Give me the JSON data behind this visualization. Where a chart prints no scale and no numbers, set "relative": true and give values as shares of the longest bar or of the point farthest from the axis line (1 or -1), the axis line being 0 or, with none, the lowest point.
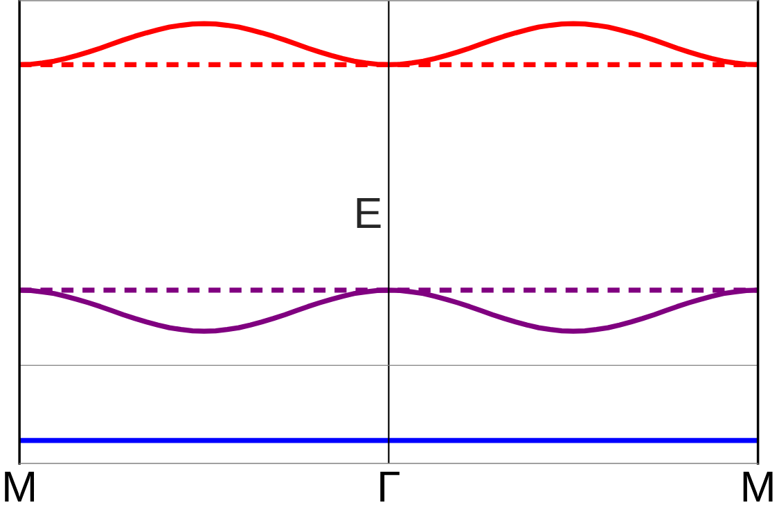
{
  "chart_data": {
    "type": "line",
    "relative": true,
    "ylabel": "E",
    "categories": [
      "M",
      null,
      null,
      null,
      null,
      null,
      null,
      null,
      null,
      null,
      null,
      null,
      null,
      null,
      null,
      null,
      null,
      null,
      null,
      null,
      null,
      null,
      null,
      null,
      null,
      null,
      null,
      null,
      null,
      null,
      null,
      null,
      "Γ",
      null,
      null,
      null,
      null,
      null,
      null,
      null,
      null,
      null,
      null,
      null,
      null,
      null,
      null,
      null,
      null,
      null,
      null,
      null,
      null,
      null,
      null,
      null,
      null,
      null,
      null,
      null,
      null,
      null,
      null,
      null,
      "M"
    ],
    "ref_lines": [
      {
        "axis": "x",
        "value": "Γ",
        "color": "#000000"
      }
    ],
    "series": [
      {
        "color": "#ff0000",
        "values": [
          0.88,
          0.881,
          0.885,
          0.89,
          0.898,
          0.907,
          0.917,
          0.928,
          0.94,
          0.952,
          0.963,
          0.973,
          0.982,
          0.99,
          0.995,
          0.999,
          1.0,
          0.999,
          0.995,
          0.99,
          0.982,
          0.973,
          0.963,
          0.952,
          0.94,
          0.928,
          0.917,
          0.907,
          0.898,
          0.89,
          0.885,
          0.881,
          0.88,
          0.881,
          0.885,
          0.89,
          0.898,
          0.907,
          0.917,
          0.928,
          0.94,
          0.952,
          0.963,
          0.973,
          0.982,
          0.99,
          0.995,
          0.999,
          1.0,
          0.999,
          0.995,
          0.99,
          0.982,
          0.973,
          0.963,
          0.952,
          0.94,
          0.928,
          0.917,
          0.907,
          0.898,
          0.89,
          0.885,
          0.881,
          0.88
        ]
      },
      {
        "color": "#ff0000",
        "line_style": "dashed",
        "values": [
          0.88,
          0.88,
          0.88,
          0.88,
          0.88,
          0.88,
          0.88,
          0.88,
          0.88,
          0.88,
          0.88,
          0.88,
          0.88,
          0.88,
          0.88,
          0.88,
          0.88,
          0.88,
          0.88,
          0.88,
          0.88,
          0.88,
          0.88,
          0.88,
          0.88,
          0.88,
          0.88,
          0.88,
          0.88,
          0.88,
          0.88,
          0.88,
          0.88,
          0.88,
          0.88,
          0.88,
          0.88,
          0.88,
          0.88,
          0.88,
          0.88,
          0.88,
          0.88,
          0.88,
          0.88,
          0.88,
          0.88,
          0.88,
          0.88,
          0.88,
          0.88,
          0.88,
          0.88,
          0.88,
          0.88,
          0.88,
          0.88,
          0.88,
          0.88,
          0.88,
          0.88,
          0.88,
          0.88,
          0.88,
          0.88
        ]
      },
      {
        "color": "#800080",
        "values": [
          0.22,
          0.219,
          0.215,
          0.21,
          0.202,
          0.193,
          0.183,
          0.172,
          0.16,
          0.148,
          0.137,
          0.127,
          0.118,
          0.11,
          0.105,
          0.101,
          0.1,
          0.101,
          0.105,
          0.11,
          0.118,
          0.127,
          0.137,
          0.148,
          0.16,
          0.172,
          0.183,
          0.193,
          0.202,
          0.21,
          0.215,
          0.219,
          0.22,
          0.219,
          0.215,
          0.21,
          0.202,
          0.193,
          0.183,
          0.172,
          0.16,
          0.148,
          0.137,
          0.127,
          0.118,
          0.11,
          0.105,
          0.101,
          0.1,
          0.101,
          0.105,
          0.11,
          0.118,
          0.127,
          0.137,
          0.148,
          0.16,
          0.172,
          0.183,
          0.193,
          0.202,
          0.21,
          0.215,
          0.219,
          0.22
        ]
      },
      {
        "color": "#800080",
        "line_style": "dashed",
        "values": [
          0.22,
          0.22,
          0.22,
          0.22,
          0.22,
          0.22,
          0.22,
          0.22,
          0.22,
          0.22,
          0.22,
          0.22,
          0.22,
          0.22,
          0.22,
          0.22,
          0.22,
          0.22,
          0.22,
          0.22,
          0.22,
          0.22,
          0.22,
          0.22,
          0.22,
          0.22,
          0.22,
          0.22,
          0.22,
          0.22,
          0.22,
          0.22,
          0.22,
          0.22,
          0.22,
          0.22,
          0.22,
          0.22,
          0.22,
          0.22,
          0.22,
          0.22,
          0.22,
          0.22,
          0.22,
          0.22,
          0.22,
          0.22,
          0.22,
          0.22,
          0.22,
          0.22,
          0.22,
          0.22,
          0.22,
          0.22,
          0.22,
          0.22,
          0.22,
          0.22,
          0.22,
          0.22,
          0.22,
          0.22,
          0.22
        ]
      },
      {
        "color": "#0000ff",
        "values": [
          -0.22,
          -0.22,
          -0.22,
          -0.22,
          -0.22,
          -0.22,
          -0.22,
          -0.22,
          -0.22,
          -0.22,
          -0.22,
          -0.22,
          -0.22,
          -0.22,
          -0.22,
          -0.22,
          -0.22,
          -0.22,
          -0.22,
          -0.22,
          -0.22,
          -0.22,
          -0.22,
          -0.22,
          -0.22,
          -0.22,
          -0.22,
          -0.22,
          -0.22,
          -0.22,
          -0.22,
          -0.22,
          -0.22,
          -0.22,
          -0.22,
          -0.22,
          -0.22,
          -0.22,
          -0.22,
          -0.22,
          -0.22,
          -0.22,
          -0.22,
          -0.22,
          -0.22,
          -0.22,
          -0.22,
          -0.22,
          -0.22,
          -0.22,
          -0.22,
          -0.22,
          -0.22,
          -0.22,
          -0.22,
          -0.22,
          -0.22,
          -0.22,
          -0.22,
          -0.22,
          -0.22,
          -0.22,
          -0.22,
          -0.22,
          -0.22
        ]
      }
    ]
  }
}
